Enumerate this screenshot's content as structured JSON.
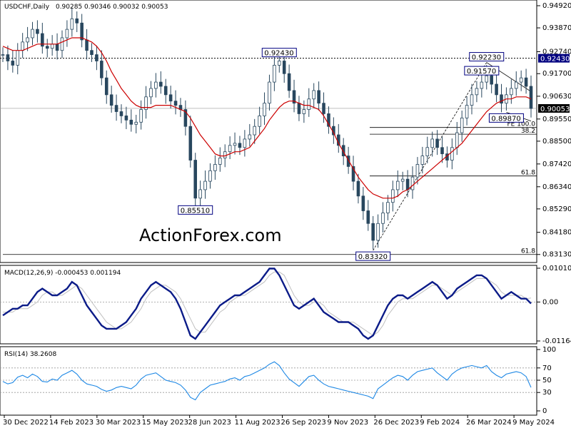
{
  "chart_data": [
    {
      "type": "candlestick",
      "header": {
        "symbol": "USDCHF,Daily",
        "ohlc": "0.90285 0.90346 0.90032 0.90053"
      },
      "y_ticks": [
        "0.94920",
        "0.93870",
        "0.92740",
        "0.91700",
        "0.90630",
        "0.89550",
        "0.88500",
        "0.87420",
        "0.86340",
        "0.85290",
        "0.84180",
        "0.83130"
      ],
      "ylim": [
        0.8302,
        0.9492
      ],
      "price_badges": [
        {
          "text": "0.92430",
          "value": 0.9243,
          "color": "#000080"
        },
        {
          "text": "0.90053",
          "value": 0.90053,
          "color": "#000000"
        }
      ],
      "swing_labels": [
        {
          "text": "0.92430",
          "index": 56,
          "value": 0.9243
        },
        {
          "text": "0.92230",
          "index": 98,
          "value": 0.9223
        },
        {
          "text": "0.91570",
          "index": 97,
          "value": 0.9157
        },
        {
          "text": "0.89870",
          "index": 102,
          "value": 0.8987
        },
        {
          "text": "0.85510",
          "index": 39,
          "value": 0.8551
        },
        {
          "text": "0.83320",
          "index": 75,
          "value": 0.8332
        }
      ],
      "fib_levels": [
        {
          "label": "FE 100.0",
          "value": 0.8915
        },
        {
          "label": "38.2",
          "value": 0.8883
        },
        {
          "label": "61.8",
          "value": 0.8685
        },
        {
          "label": "61.8",
          "value": 0.8313
        }
      ],
      "watermark": "ActionForex.com",
      "close": [
        0.926,
        0.923,
        0.921,
        0.928,
        0.932,
        0.934,
        0.938,
        0.936,
        0.93,
        0.929,
        0.931,
        0.928,
        0.934,
        0.938,
        0.943,
        0.941,
        0.933,
        0.928,
        0.926,
        0.923,
        0.915,
        0.907,
        0.902,
        0.899,
        0.897,
        0.895,
        0.893,
        0.894,
        0.9,
        0.906,
        0.91,
        0.913,
        0.911,
        0.907,
        0.904,
        0.902,
        0.9,
        0.892,
        0.876,
        0.858,
        0.862,
        0.866,
        0.871,
        0.874,
        0.877,
        0.88,
        0.883,
        0.884,
        0.882,
        0.886,
        0.888,
        0.892,
        0.897,
        0.903,
        0.913,
        0.921,
        0.923,
        0.917,
        0.909,
        0.903,
        0.898,
        0.9,
        0.905,
        0.909,
        0.903,
        0.898,
        0.892,
        0.888,
        0.883,
        0.878,
        0.873,
        0.866,
        0.859,
        0.852,
        0.846,
        0.838,
        0.846,
        0.851,
        0.856,
        0.862,
        0.866,
        0.867,
        0.862,
        0.868,
        0.874,
        0.878,
        0.882,
        0.886,
        0.882,
        0.879,
        0.876,
        0.882,
        0.889,
        0.896,
        0.902,
        0.907,
        0.91,
        0.913,
        0.916,
        0.912,
        0.907,
        0.903,
        0.907,
        0.91,
        0.913,
        0.915,
        0.911,
        0.9005
      ],
      "ma": [
        0.93,
        0.929,
        0.928,
        0.928,
        0.928,
        0.929,
        0.93,
        0.931,
        0.931,
        0.931,
        0.931,
        0.931,
        0.932,
        0.933,
        0.934,
        0.934,
        0.934,
        0.933,
        0.932,
        0.93,
        0.927,
        0.923,
        0.918,
        0.914,
        0.91,
        0.907,
        0.904,
        0.902,
        0.901,
        0.901,
        0.901,
        0.902,
        0.902,
        0.902,
        0.902,
        0.901,
        0.9,
        0.899,
        0.896,
        0.892,
        0.888,
        0.885,
        0.882,
        0.879,
        0.878,
        0.878,
        0.879,
        0.88,
        0.88,
        0.881,
        0.882,
        0.885,
        0.888,
        0.891,
        0.895,
        0.898,
        0.901,
        0.903,
        0.904,
        0.904,
        0.903,
        0.902,
        0.902,
        0.901,
        0.9,
        0.897,
        0.893,
        0.889,
        0.884,
        0.88,
        0.876,
        0.872,
        0.868,
        0.865,
        0.862,
        0.86,
        0.859,
        0.858,
        0.858,
        0.858,
        0.859,
        0.861,
        0.862,
        0.864,
        0.866,
        0.868,
        0.87,
        0.872,
        0.874,
        0.876,
        0.878,
        0.88,
        0.882,
        0.884,
        0.887,
        0.89,
        0.893,
        0.896,
        0.899,
        0.901,
        0.903,
        0.904,
        0.905,
        0.905,
        0.906,
        0.906,
        0.906,
        0.905
      ],
      "x_labels": [
        "30 Dec 2022",
        "14 Feb 2023",
        "30 Mar 2023",
        "15 May 2023",
        "28 Jun 2023",
        "11 Aug 2023",
        "26 Sep 2023",
        "9 Nov 2023",
        "26 Dec 2023",
        "9 Feb 2024",
        "26 Mar 2024",
        "9 May 2024"
      ]
    },
    {
      "type": "line",
      "title": "MACD(12,26,9) -0.000453 0.001194",
      "y_ticks": [
        "0.010101",
        "0.00",
        "-0.011645"
      ],
      "ylim": [
        -0.011645,
        0.010101
      ],
      "series": [
        {
          "values": [
            -0.004,
            -0.003,
            -0.002,
            -0.002,
            -0.001,
            -0.001,
            0.001,
            0.003,
            0.004,
            0.003,
            0.002,
            0.002,
            0.003,
            0.004,
            0.006,
            0.005,
            0.002,
            -0.001,
            -0.003,
            -0.005,
            -0.007,
            -0.008,
            -0.008,
            -0.008,
            -0.007,
            -0.006,
            -0.004,
            -0.002,
            0.001,
            0.003,
            0.005,
            0.006,
            0.005,
            0.004,
            0.003,
            0.001,
            -0.002,
            -0.006,
            -0.01,
            -0.011,
            -0.009,
            -0.007,
            -0.005,
            -0.003,
            -0.001,
            0.0,
            0.001,
            0.002,
            0.002,
            0.003,
            0.004,
            0.005,
            0.006,
            0.008,
            0.01,
            0.01,
            0.008,
            0.005,
            0.002,
            -0.001,
            -0.002,
            -0.001,
            0.0,
            0.001,
            -0.001,
            -0.003,
            -0.004,
            -0.005,
            -0.006,
            -0.006,
            -0.006,
            -0.007,
            -0.008,
            -0.01,
            -0.011,
            -0.01,
            -0.007,
            -0.004,
            -0.001,
            0.001,
            0.002,
            0.002,
            0.001,
            0.002,
            0.003,
            0.004,
            0.005,
            0.006,
            0.005,
            0.003,
            0.001,
            0.002,
            0.004,
            0.005,
            0.006,
            0.007,
            0.008,
            0.008,
            0.007,
            0.005,
            0.003,
            0.001,
            0.002,
            0.003,
            0.002,
            0.001,
            0.001,
            -0.000453
          ]
        },
        {
          "values": [
            -0.003,
            -0.003,
            -0.003,
            -0.002,
            -0.002,
            -0.002,
            -0.001,
            0.0,
            0.002,
            0.003,
            0.003,
            0.002,
            0.002,
            0.003,
            0.004,
            0.005,
            0.004,
            0.002,
            0.0,
            -0.002,
            -0.004,
            -0.006,
            -0.007,
            -0.008,
            -0.008,
            -0.007,
            -0.006,
            -0.004,
            -0.002,
            0.001,
            0.003,
            0.004,
            0.005,
            0.005,
            0.004,
            0.003,
            0.001,
            -0.002,
            -0.005,
            -0.008,
            -0.009,
            -0.009,
            -0.007,
            -0.005,
            -0.003,
            -0.002,
            0.0,
            0.001,
            0.002,
            0.002,
            0.003,
            0.004,
            0.005,
            0.006,
            0.008,
            0.009,
            0.009,
            0.008,
            0.005,
            0.002,
            0.0,
            -0.001,
            -0.001,
            0.0,
            0.0,
            -0.001,
            -0.003,
            -0.004,
            -0.005,
            -0.006,
            -0.006,
            -0.006,
            -0.007,
            -0.008,
            -0.009,
            -0.01,
            -0.009,
            -0.007,
            -0.004,
            -0.002,
            0.0,
            0.001,
            0.001,
            0.001,
            0.002,
            0.003,
            0.004,
            0.005,
            0.005,
            0.004,
            0.003,
            0.002,
            0.003,
            0.004,
            0.005,
            0.006,
            0.007,
            0.007,
            0.007,
            0.006,
            0.005,
            0.003,
            0.002,
            0.002,
            0.002,
            0.002,
            0.001,
            0.001194
          ]
        }
      ]
    },
    {
      "type": "line",
      "title": "RSI(14) 38.2608",
      "y_ticks": [
        "100",
        "70",
        "50",
        "30",
        "0"
      ],
      "ylim": [
        0,
        100
      ],
      "series": [
        {
          "values": [
            48,
            44,
            46,
            55,
            58,
            54,
            60,
            56,
            48,
            47,
            52,
            50,
            58,
            62,
            66,
            60,
            50,
            44,
            42,
            40,
            35,
            32,
            34,
            38,
            40,
            38,
            36,
            42,
            52,
            58,
            60,
            62,
            56,
            50,
            48,
            46,
            42,
            34,
            22,
            18,
            30,
            36,
            42,
            44,
            46,
            48,
            52,
            54,
            50,
            56,
            58,
            62,
            66,
            70,
            76,
            80,
            74,
            62,
            52,
            46,
            40,
            48,
            56,
            58,
            50,
            44,
            40,
            38,
            36,
            34,
            32,
            30,
            28,
            26,
            24,
            20,
            36,
            42,
            48,
            54,
            58,
            56,
            50,
            58,
            64,
            66,
            68,
            70,
            62,
            56,
            50,
            60,
            66,
            70,
            72,
            74,
            72,
            70,
            74,
            64,
            58,
            54,
            60,
            62,
            64,
            62,
            56,
            38.2608
          ]
        }
      ]
    }
  ]
}
